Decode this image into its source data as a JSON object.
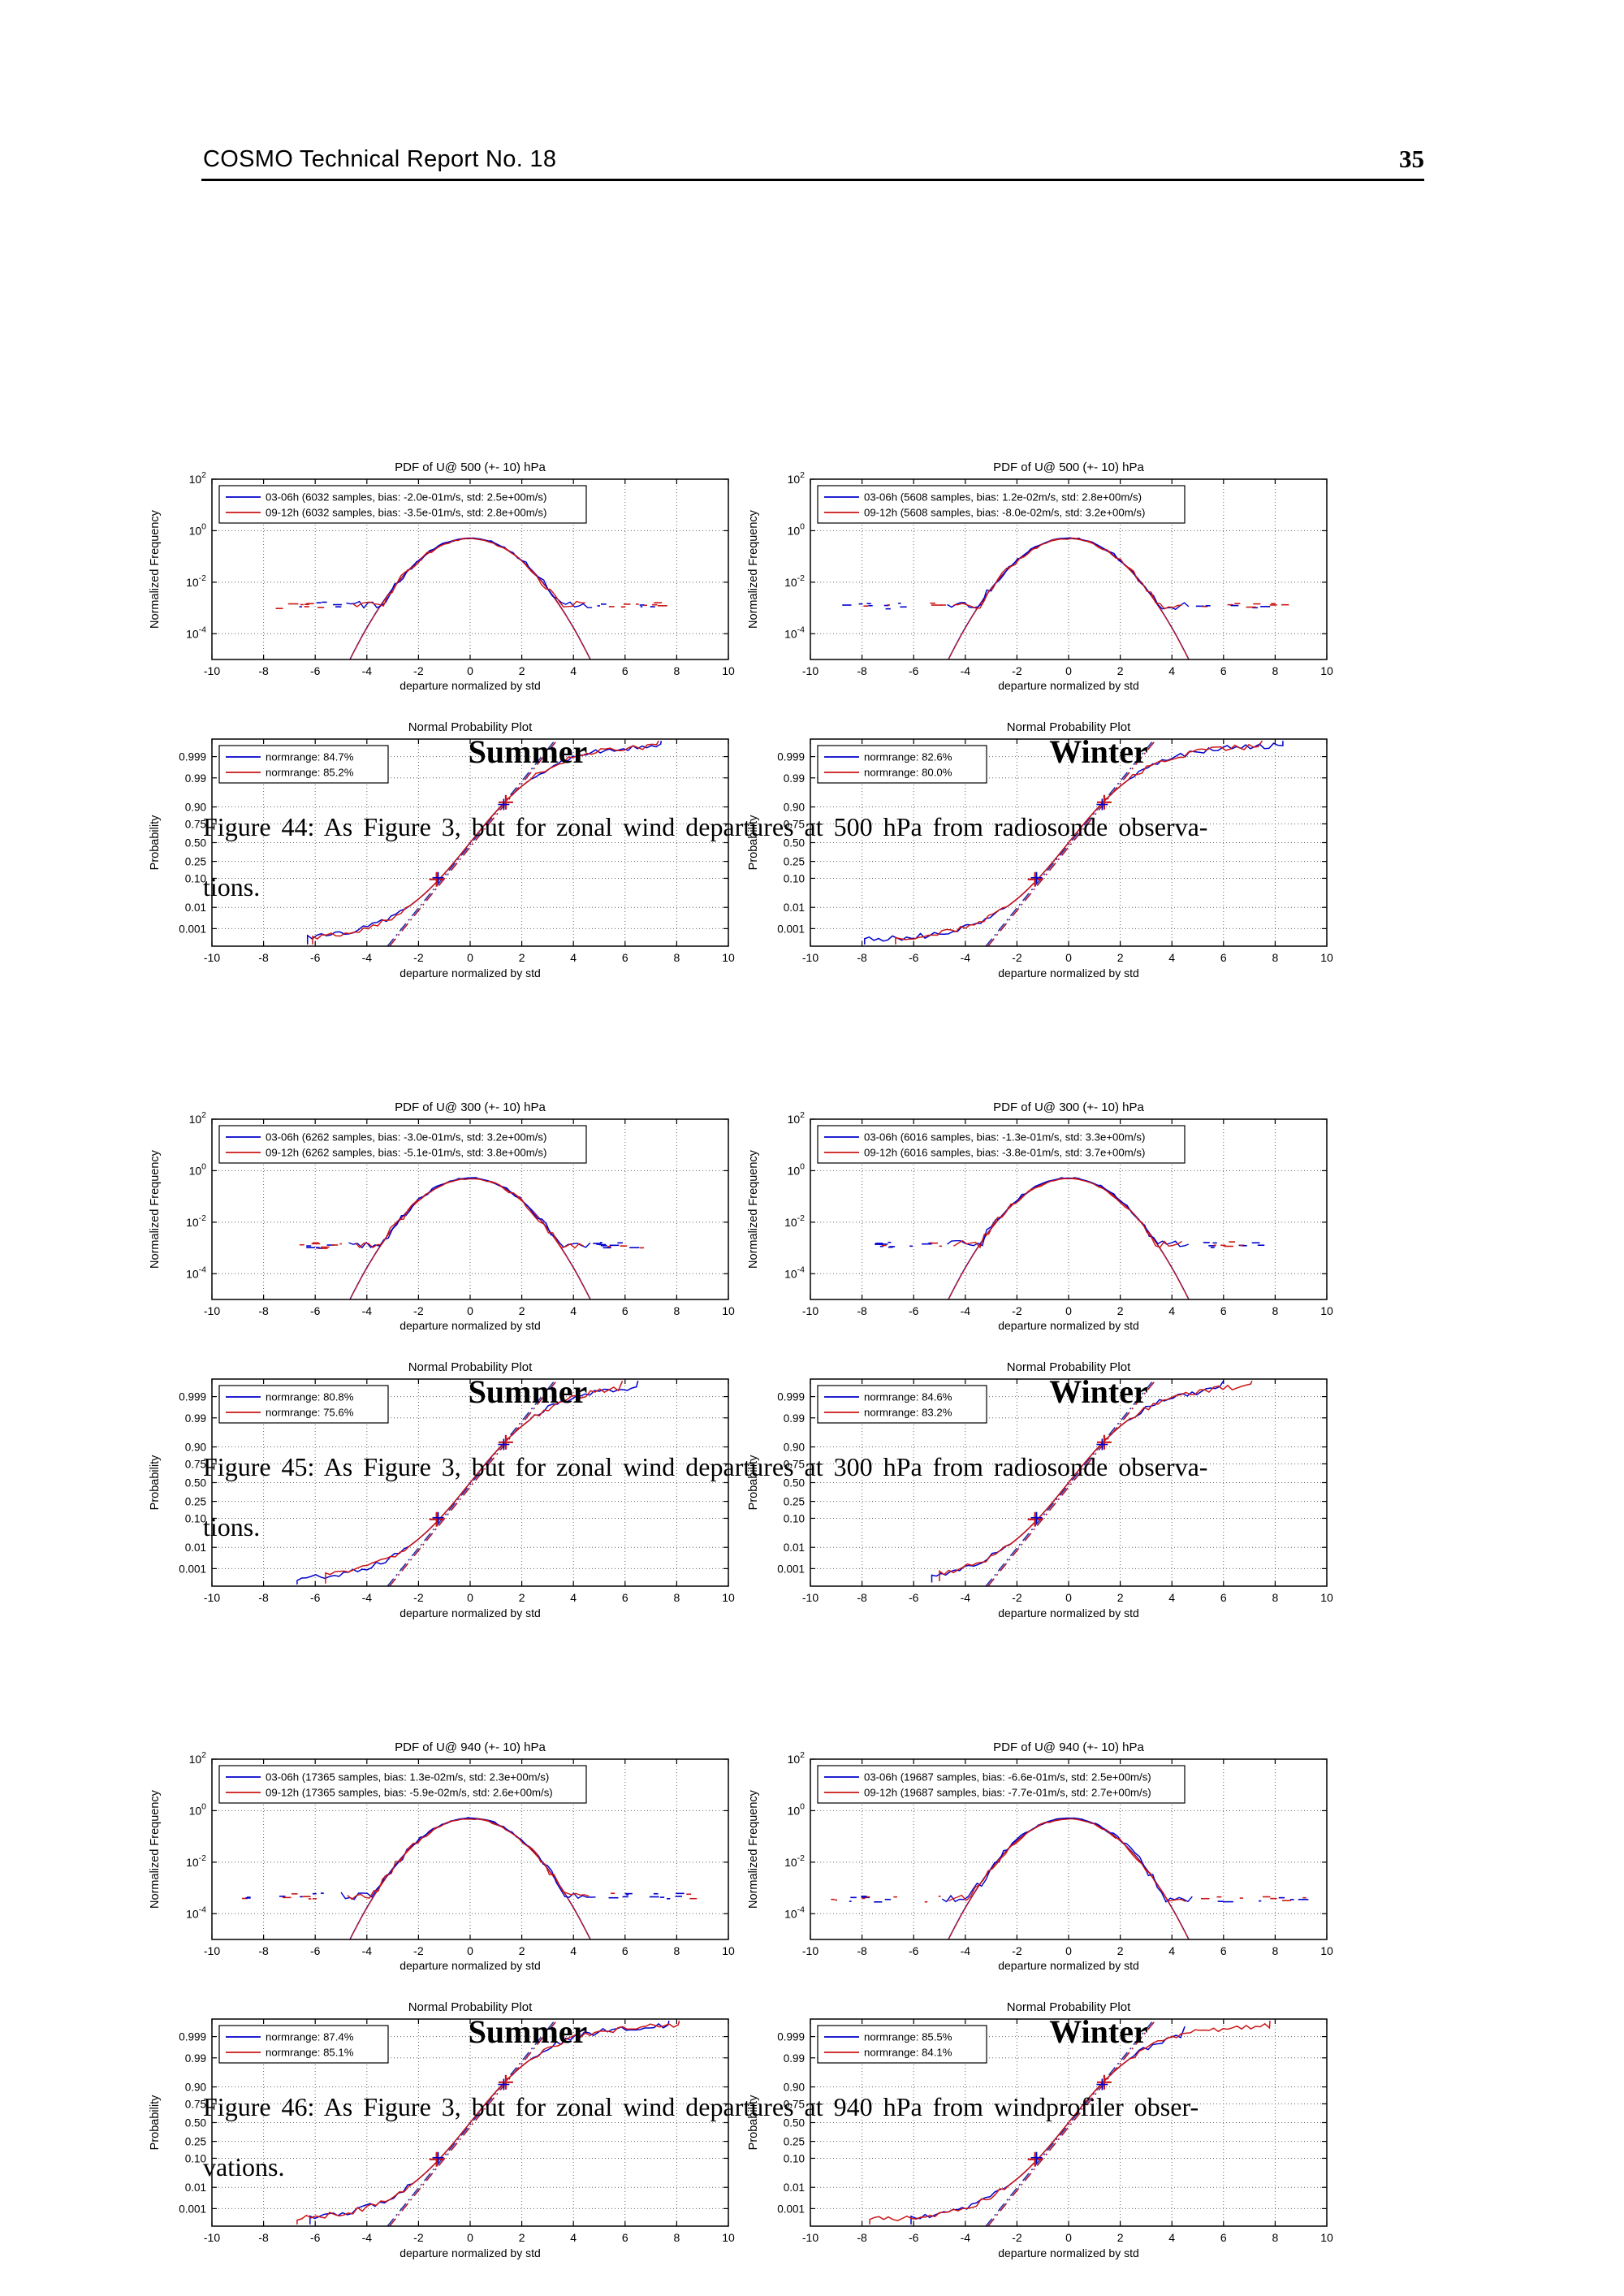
{
  "header": {
    "left": "COSMO Technical Report No. 18",
    "page_number": "35"
  },
  "plot_colors": {
    "blue": "#0000cc",
    "red": "#cc1515",
    "ref_blue": "#2233aa",
    "ref_red": "#aa1133"
  },
  "figures": [
    {
      "caption_line1": "Figure 44: As Figure 3, but for zonal wind departures at 500 hPa from radiosonde observa-",
      "caption_line2": "tions.",
      "columns": [
        {
          "season": "Summer",
          "pdf": {
            "type": "line",
            "title": "PDF of U@ 500 (+- 10) hPa",
            "xlabel": "departure normalized by std",
            "ylabel": "Normalized Frequency",
            "xlim": [
              -10,
              10
            ],
            "xticks": [
              -10,
              -8,
              -6,
              -4,
              -2,
              0,
              2,
              4,
              6,
              8,
              10
            ],
            "ytick_exponents": [
              2,
              0,
              -2,
              -4
            ],
            "ylim_log10": [
              2,
              -5
            ],
            "series": [
              {
                "name": "03-06h (6032 samples, bias: -2.0e-01m/s, std: 2.5e+00m/s)",
                "color_key": "blue",
                "samples": 6032,
                "bias_mps": -0.2,
                "std_mps": 2.5
              },
              {
                "name": "09-12h (6032 samples, bias: -3.5e-01m/s, std: 2.8e+00m/s)",
                "color_key": "red",
                "samples": 6032,
                "bias_mps": -0.35,
                "std_mps": 2.8
              }
            ],
            "gauss_peak": 0.5,
            "noise_floor": 0.0012,
            "data_extent": 4.7,
            "outlier_extent": 7.4
          },
          "npp": {
            "type": "line",
            "title": "Normal Probability Plot",
            "xlabel": "departure normalized by std",
            "ylabel": "Probability",
            "xlim": [
              -10,
              10
            ],
            "xticks": [
              -10,
              -8,
              -6,
              -4,
              -2,
              0,
              2,
              4,
              6,
              8,
              10
            ],
            "yticks": [
              0.999,
              0.99,
              0.9,
              0.75,
              0.5,
              0.25,
              0.1,
              0.01,
              0.001
            ],
            "series": [
              {
                "name": "normrange: 84.7%",
                "color_key": "blue",
                "normrange_pct": 84.7,
                "x_range": [
                  -6.3,
                  7.4
                ]
              },
              {
                "name": "normrange: 85.2%",
                "color_key": "red",
                "normrange_pct": 85.2,
                "x_range": [
                  -6.1,
                  7.3
                ]
              }
            ]
          }
        },
        {
          "season": "Winter",
          "pdf": {
            "type": "line",
            "title": "PDF of U@ 500 (+- 10) hPa",
            "xlabel": "departure normalized by std",
            "ylabel": "Normalized Frequency",
            "xlim": [
              -10,
              10
            ],
            "xticks": [
              -10,
              -8,
              -6,
              -4,
              -2,
              0,
              2,
              4,
              6,
              8,
              10
            ],
            "ytick_exponents": [
              2,
              0,
              -2,
              -4
            ],
            "ylim_log10": [
              2,
              -5
            ],
            "series": [
              {
                "name": "03-06h (5608 samples, bias: 1.2e-02m/s, std: 2.8e+00m/s)",
                "color_key": "blue",
                "samples": 5608,
                "bias_mps": 0.012,
                "std_mps": 2.8
              },
              {
                "name": "09-12h (5608 samples, bias: -8.0e-02m/s, std: 3.2e+00m/s)",
                "color_key": "red",
                "samples": 5608,
                "bias_mps": -0.08,
                "std_mps": 3.2
              }
            ],
            "gauss_peak": 0.5,
            "noise_floor": 0.0011,
            "data_extent": 4.6,
            "outlier_extent": 8.3
          },
          "npp": {
            "type": "line",
            "title": "Normal Probability Plot",
            "xlabel": "departure normalized by std",
            "ylabel": "Probability",
            "xlim": [
              -10,
              10
            ],
            "xticks": [
              -10,
              -8,
              -6,
              -4,
              -2,
              0,
              2,
              4,
              6,
              8,
              10
            ],
            "yticks": [
              0.999,
              0.99,
              0.9,
              0.75,
              0.5,
              0.25,
              0.1,
              0.01,
              0.001
            ],
            "series": [
              {
                "name": "normrange: 82.6%",
                "color_key": "blue",
                "normrange_pct": 82.6,
                "x_range": [
                  -7.9,
                  8.3
                ]
              },
              {
                "name": "normrange: 80.0%",
                "color_key": "red",
                "normrange_pct": 80.0,
                "x_range": [
                  -6.7,
                  7.5
                ]
              }
            ]
          }
        }
      ]
    },
    {
      "caption_line1": "Figure 45: As Figure 3, but for zonal wind departures at 300 hPa from radiosonde observa-",
      "caption_line2": "tions.",
      "columns": [
        {
          "season": "Summer",
          "pdf": {
            "type": "line",
            "title": "PDF of U@ 300 (+- 10) hPa",
            "xlabel": "departure normalized by std",
            "ylabel": "Normalized Frequency",
            "xlim": [
              -10,
              10
            ],
            "xticks": [
              -10,
              -8,
              -6,
              -4,
              -2,
              0,
              2,
              4,
              6,
              8,
              10
            ],
            "ytick_exponents": [
              2,
              0,
              -2,
              -4
            ],
            "ylim_log10": [
              2,
              -5
            ],
            "series": [
              {
                "name": "03-06h (6262 samples, bias: -3.0e-01m/s, std: 3.2e+00m/s)",
                "color_key": "blue",
                "samples": 6262,
                "bias_mps": -0.3,
                "std_mps": 3.2
              },
              {
                "name": "09-12h (6262 samples, bias: -5.1e-01m/s, std: 3.8e+00m/s)",
                "color_key": "red",
                "samples": 6262,
                "bias_mps": -0.51,
                "std_mps": 3.8
              }
            ],
            "gauss_peak": 0.5,
            "noise_floor": 0.0012,
            "data_extent": 4.6,
            "outlier_extent": 6.6
          },
          "npp": {
            "type": "line",
            "title": "Normal Probability Plot",
            "xlabel": "departure normalized by std",
            "ylabel": "Probability",
            "xlim": [
              -10,
              10
            ],
            "xticks": [
              -10,
              -8,
              -6,
              -4,
              -2,
              0,
              2,
              4,
              6,
              8,
              10
            ],
            "yticks": [
              0.999,
              0.99,
              0.9,
              0.75,
              0.5,
              0.25,
              0.1,
              0.01,
              0.001
            ],
            "series": [
              {
                "name": "normrange: 80.8%",
                "color_key": "blue",
                "normrange_pct": 80.8,
                "x_range": [
                  -6.7,
                  6.5
                ]
              },
              {
                "name": "normrange: 75.6%",
                "color_key": "red",
                "normrange_pct": 75.6,
                "x_range": [
                  -5.6,
                  5.9
                ]
              }
            ]
          }
        },
        {
          "season": "Winter",
          "pdf": {
            "type": "line",
            "title": "PDF of U@ 300 (+- 10) hPa",
            "xlabel": "departure normalized by std",
            "ylabel": "Normalized Frequency",
            "xlim": [
              -10,
              10
            ],
            "xticks": [
              -10,
              -8,
              -6,
              -4,
              -2,
              0,
              2,
              4,
              6,
              8,
              10
            ],
            "ytick_exponents": [
              2,
              0,
              -2,
              -4
            ],
            "ylim_log10": [
              2,
              -5
            ],
            "series": [
              {
                "name": "03-06h (6016 samples, bias: -1.3e-01m/s, std: 3.3e+00m/s)",
                "color_key": "blue",
                "samples": 6016,
                "bias_mps": -0.13,
                "std_mps": 3.3
              },
              {
                "name": "09-12h (6016 samples, bias: -3.8e-01m/s, std: 3.7e+00m/s)",
                "color_key": "red",
                "samples": 6016,
                "bias_mps": -0.38,
                "std_mps": 3.7
              }
            ],
            "gauss_peak": 0.5,
            "noise_floor": 0.0013,
            "data_extent": 4.6,
            "outlier_extent": 7.2
          },
          "npp": {
            "type": "line",
            "title": "Normal Probability Plot",
            "xlabel": "departure normalized by std",
            "ylabel": "Probability",
            "xlim": [
              -10,
              10
            ],
            "xticks": [
              -10,
              -8,
              -6,
              -4,
              -2,
              0,
              2,
              4,
              6,
              8,
              10
            ],
            "yticks": [
              0.999,
              0.99,
              0.9,
              0.75,
              0.5,
              0.25,
              0.1,
              0.01,
              0.001
            ],
            "series": [
              {
                "name": "normrange: 84.6%",
                "color_key": "blue",
                "normrange_pct": 84.6,
                "x_range": [
                  -5.3,
                  6.0
                ]
              },
              {
                "name": "normrange: 83.2%",
                "color_key": "red",
                "normrange_pct": 83.2,
                "x_range": [
                  -5.0,
                  7.1
                ]
              }
            ]
          }
        }
      ]
    },
    {
      "caption_line1": "Figure 46: As Figure 3, but for zonal wind departures at 940 hPa from windprofiler obser-",
      "caption_line2": "vations.",
      "columns": [
        {
          "season": "Summer",
          "pdf": {
            "type": "line",
            "title": "PDF of U@ 940 (+- 10) hPa",
            "xlabel": "departure normalized by std",
            "ylabel": "Normalized Frequency",
            "xlim": [
              -10,
              10
            ],
            "xticks": [
              -10,
              -8,
              -6,
              -4,
              -2,
              0,
              2,
              4,
              6,
              8,
              10
            ],
            "ytick_exponents": [
              2,
              0,
              -2,
              -4
            ],
            "ylim_log10": [
              2,
              -5
            ],
            "series": [
              {
                "name": "03-06h (17365 samples, bias: 1.3e-02m/s, std: 2.3e+00m/s)",
                "color_key": "blue",
                "samples": 17365,
                "bias_mps": 0.013,
                "std_mps": 2.3
              },
              {
                "name": "09-12h (17365 samples, bias: -5.9e-02m/s, std: 2.6e+00m/s)",
                "color_key": "red",
                "samples": 17365,
                "bias_mps": -0.059,
                "std_mps": 2.6
              }
            ],
            "gauss_peak": 0.5,
            "noise_floor": 0.00045,
            "data_extent": 4.9,
            "outlier_extent": 8.6
          },
          "npp": {
            "type": "line",
            "title": "Normal Probability Plot",
            "xlabel": "departure normalized by std",
            "ylabel": "Probability",
            "xlim": [
              -10,
              10
            ],
            "xticks": [
              -10,
              -8,
              -6,
              -4,
              -2,
              0,
              2,
              4,
              6,
              8,
              10
            ],
            "yticks": [
              0.999,
              0.99,
              0.9,
              0.75,
              0.5,
              0.25,
              0.1,
              0.01,
              0.001
            ],
            "series": [
              {
                "name": "normrange: 87.4%",
                "color_key": "blue",
                "normrange_pct": 87.4,
                "x_range": [
                  -6.2,
                  7.7
                ]
              },
              {
                "name": "normrange: 85.1%",
                "color_key": "red",
                "normrange_pct": 85.1,
                "x_range": [
                  -6.7,
                  8.1
                ]
              }
            ]
          }
        },
        {
          "season": "Winter",
          "pdf": {
            "type": "line",
            "title": "PDF of U@ 940 (+- 10) hPa",
            "xlabel": "departure normalized by std",
            "ylabel": "Normalized Frequency",
            "xlim": [
              -10,
              10
            ],
            "xticks": [
              -10,
              -8,
              -6,
              -4,
              -2,
              0,
              2,
              4,
              6,
              8,
              10
            ],
            "ytick_exponents": [
              2,
              0,
              -2,
              -4
            ],
            "ylim_log10": [
              2,
              -5
            ],
            "series": [
              {
                "name": "03-06h (19687 samples, bias: -6.6e-01m/s, std: 2.5e+00m/s)",
                "color_key": "blue",
                "samples": 19687,
                "bias_mps": -0.66,
                "std_mps": 2.5
              },
              {
                "name": "09-12h (19687 samples, bias: -7.7e-01m/s, std: 2.7e+00m/s)",
                "color_key": "red",
                "samples": 19687,
                "bias_mps": -0.77,
                "std_mps": 2.7
              }
            ],
            "gauss_peak": 0.5,
            "noise_floor": 0.00035,
            "data_extent": 4.8,
            "outlier_extent": 9.0
          },
          "npp": {
            "type": "line",
            "title": "Normal Probability Plot",
            "xlabel": "departure normalized by std",
            "ylabel": "Probability",
            "xlim": [
              -10,
              10
            ],
            "xticks": [
              -10,
              -8,
              -6,
              -4,
              -2,
              0,
              2,
              4,
              6,
              8,
              10
            ],
            "yticks": [
              0.999,
              0.99,
              0.9,
              0.75,
              0.5,
              0.25,
              0.1,
              0.01,
              0.001
            ],
            "series": [
              {
                "name": "normrange: 85.5%",
                "color_key": "blue",
                "normrange_pct": 85.5,
                "x_range": [
                  -6.1,
                  4.5
                ]
              },
              {
                "name": "normrange: 84.1%",
                "color_key": "red",
                "normrange_pct": 84.1,
                "x_range": [
                  -7.7,
                  7.8
                ]
              }
            ]
          }
        }
      ]
    }
  ]
}
